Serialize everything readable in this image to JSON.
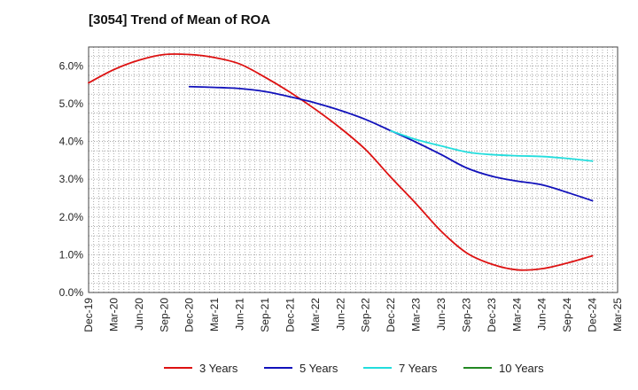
{
  "chart_data": {
    "type": "line",
    "title": "[3054]  Trend of Mean of ROA",
    "xlabel": "",
    "ylabel": "",
    "categories": [
      "Dec-19",
      "Mar-20",
      "Jun-20",
      "Sep-20",
      "Dec-20",
      "Mar-21",
      "Jun-21",
      "Sep-21",
      "Dec-21",
      "Mar-22",
      "Jun-22",
      "Sep-22",
      "Dec-22",
      "Mar-23",
      "Jun-23",
      "Sep-23",
      "Dec-23",
      "Mar-24",
      "Jun-24",
      "Sep-24",
      "Dec-24",
      "Mar-25"
    ],
    "ylim": [
      0,
      6.5
    ],
    "yticks": [
      0,
      1,
      2,
      3,
      4,
      5,
      6
    ],
    "ytick_labels": [
      "0.0%",
      "1.0%",
      "2.0%",
      "3.0%",
      "4.0%",
      "5.0%",
      "6.0%"
    ],
    "grid": true,
    "legend_position": "bottom",
    "series": [
      {
        "name": "3 Years",
        "color": "#dd1111",
        "values": [
          5.55,
          5.9,
          6.15,
          6.3,
          6.3,
          6.22,
          6.05,
          5.7,
          5.3,
          4.85,
          4.35,
          3.78,
          3.05,
          2.35,
          1.62,
          1.05,
          0.75,
          0.6,
          0.63,
          0.78,
          0.97,
          null
        ]
      },
      {
        "name": "5 Years",
        "color": "#1111bb",
        "values": [
          null,
          null,
          null,
          null,
          5.45,
          5.43,
          5.4,
          5.32,
          5.18,
          5.02,
          4.82,
          4.58,
          4.28,
          3.98,
          3.65,
          3.3,
          3.08,
          2.95,
          2.85,
          2.65,
          2.43,
          null
        ]
      },
      {
        "name": "7 Years",
        "color": "#22dddd",
        "values": [
          null,
          null,
          null,
          null,
          null,
          null,
          null,
          null,
          null,
          null,
          null,
          null,
          4.28,
          4.05,
          3.88,
          3.72,
          3.65,
          3.62,
          3.6,
          3.55,
          3.48,
          null
        ]
      },
      {
        "name": "10 Years",
        "color": "#228822",
        "values": [
          null,
          null,
          null,
          null,
          null,
          null,
          null,
          null,
          null,
          null,
          null,
          null,
          null,
          null,
          null,
          null,
          null,
          null,
          null,
          null,
          null,
          null
        ]
      }
    ]
  }
}
